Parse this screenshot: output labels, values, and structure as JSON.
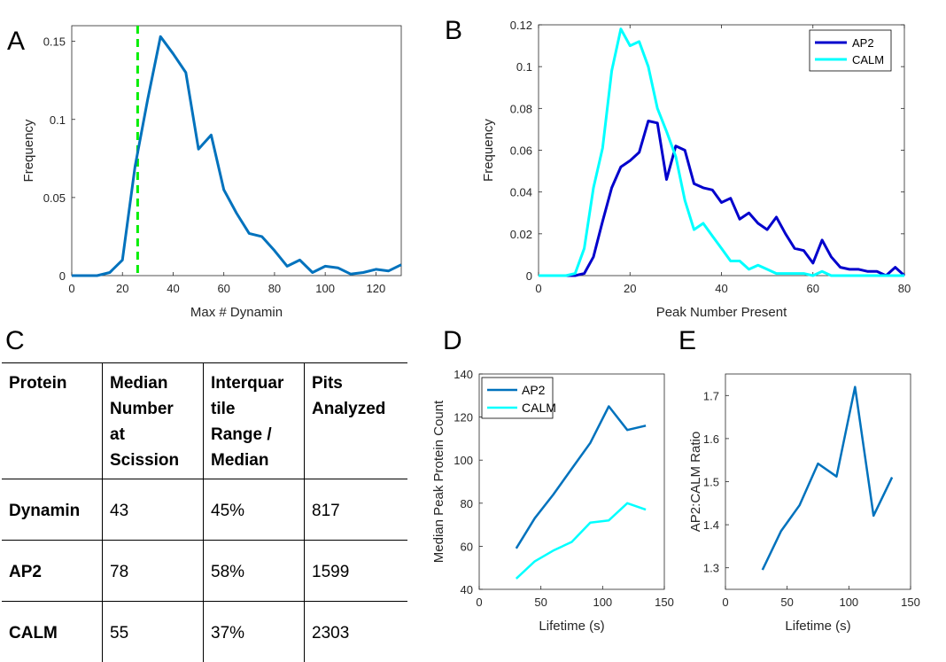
{
  "panel_labels": [
    "A",
    "B",
    "C",
    "D",
    "E"
  ],
  "colors": {
    "blue": "#0072bd",
    "dark_blue": "#0000cc",
    "cyan": "#00ffff",
    "green": "#00ee00"
  },
  "chart_data": [
    {
      "panel": "A",
      "type": "line",
      "xlabel": "Max # Dynamin",
      "ylabel": "Frequency",
      "xlim": [
        0,
        130
      ],
      "ylim": [
        0,
        0.16
      ],
      "xticks": [
        0,
        20,
        40,
        60,
        80,
        100,
        120
      ],
      "yticks": [
        0,
        0.05,
        0.1,
        0.15
      ],
      "ytick_labels": [
        "0",
        "0.05",
        "0.1",
        "0.15"
      ],
      "vline": {
        "x": 26,
        "style": "dashed",
        "color": "#00ee00"
      },
      "series": [
        {
          "color": "#0072bd",
          "x": [
            0,
            5,
            10,
            15,
            20,
            25,
            30,
            35,
            40,
            45,
            50,
            55,
            60,
            65,
            70,
            75,
            80,
            85,
            90,
            95,
            100,
            105,
            110,
            115,
            120,
            125,
            130
          ],
          "y": [
            0,
            0,
            0,
            0.002,
            0.01,
            0.07,
            0.113,
            0.153,
            0.142,
            0.13,
            0.081,
            0.09,
            0.055,
            0.04,
            0.027,
            0.025,
            0.016,
            0.006,
            0.01,
            0.002,
            0.006,
            0.005,
            0.001,
            0.002,
            0.004,
            0.003,
            0.007
          ]
        }
      ]
    },
    {
      "panel": "B",
      "type": "line",
      "xlabel": "Peak Number Present",
      "ylabel": "Frequency",
      "xlim": [
        0,
        80
      ],
      "ylim": [
        0,
        0.12
      ],
      "xticks": [
        0,
        20,
        40,
        60,
        80
      ],
      "yticks": [
        0,
        0.02,
        0.04,
        0.06,
        0.08,
        0.1,
        0.12
      ],
      "ytick_labels": [
        "0",
        "0.02",
        "0.04",
        "0.06",
        "0.08",
        "0.1",
        "0.12"
      ],
      "legend": "top-right",
      "series": [
        {
          "name": "AP2",
          "color": "#0000cc",
          "x": [
            0,
            2,
            4,
            6,
            8,
            10,
            12,
            14,
            16,
            18,
            20,
            22,
            24,
            26,
            28,
            30,
            32,
            34,
            36,
            38,
            40,
            42,
            44,
            46,
            48,
            50,
            52,
            54,
            56,
            58,
            60,
            62,
            64,
            66,
            68,
            70,
            72,
            74,
            76,
            78,
            80
          ],
          "y": [
            0,
            0,
            0,
            0,
            0,
            0.001,
            0.009,
            0.026,
            0.042,
            0.052,
            0.055,
            0.059,
            0.074,
            0.073,
            0.046,
            0.062,
            0.06,
            0.044,
            0.042,
            0.041,
            0.035,
            0.037,
            0.027,
            0.03,
            0.025,
            0.022,
            0.028,
            0.02,
            0.013,
            0.012,
            0.006,
            0.017,
            0.009,
            0.004,
            0.003,
            0.003,
            0.002,
            0.002,
            0,
            0.004,
            0
          ]
        },
        {
          "name": "CALM",
          "color": "#00ffff",
          "x": [
            0,
            2,
            4,
            6,
            8,
            10,
            12,
            14,
            16,
            18,
            20,
            22,
            24,
            26,
            28,
            30,
            32,
            34,
            36,
            38,
            40,
            42,
            44,
            46,
            48,
            50,
            52,
            54,
            56,
            58,
            60,
            62,
            64,
            66,
            68,
            70,
            72,
            74,
            76,
            78,
            80
          ],
          "y": [
            0,
            0,
            0,
            0,
            0.001,
            0.013,
            0.042,
            0.061,
            0.098,
            0.118,
            0.11,
            0.112,
            0.1,
            0.08,
            0.069,
            0.057,
            0.036,
            0.022,
            0.025,
            0.019,
            0.013,
            0.007,
            0.007,
            0.003,
            0.005,
            0.003,
            0.001,
            0.001,
            0.001,
            0.001,
            0,
            0.002,
            0,
            0,
            0,
            0,
            0,
            0,
            0,
            0,
            0
          ]
        }
      ]
    },
    {
      "panel": "D",
      "type": "line",
      "xlabel": "Lifetime (s)",
      "ylabel": "Median Peak Protein Count",
      "xlim": [
        0,
        150
      ],
      "ylim": [
        40,
        140
      ],
      "xticks": [
        0,
        50,
        100,
        150
      ],
      "yticks": [
        40,
        60,
        80,
        100,
        120,
        140
      ],
      "legend": "top-left",
      "series": [
        {
          "name": "AP2",
          "color": "#0072bd",
          "x": [
            30,
            45,
            60,
            75,
            90,
            105,
            120,
            135
          ],
          "y": [
            59,
            73,
            84,
            96,
            108,
            125,
            114,
            116
          ]
        },
        {
          "name": "CALM",
          "color": "#00ffff",
          "x": [
            30,
            45,
            60,
            75,
            90,
            105,
            120,
            135
          ],
          "y": [
            45,
            53,
            58,
            62,
            71,
            72,
            80,
            77
          ]
        }
      ]
    },
    {
      "panel": "E",
      "type": "line",
      "xlabel": "Lifetime (s)",
      "ylabel": "AP2:CALM Ratio",
      "xlim": [
        0,
        150
      ],
      "ylim": [
        1.25,
        1.75
      ],
      "xticks": [
        0,
        50,
        100,
        150
      ],
      "yticks": [
        1.3,
        1.4,
        1.5,
        1.6,
        1.7
      ],
      "series": [
        {
          "color": "#0072bd",
          "x": [
            30,
            45,
            60,
            75,
            90,
            105,
            120,
            135
          ],
          "y": [
            1.295,
            1.385,
            1.445,
            1.542,
            1.512,
            1.72,
            1.421,
            1.51
          ]
        }
      ]
    },
    {
      "panel": "C",
      "type": "table",
      "headers": [
        "Protein",
        "Median Number at Scission",
        "Interquartile Range / Median",
        "Pits Analyzed"
      ],
      "header_lines": [
        [
          "Protein"
        ],
        [
          "Median",
          "Number",
          "at",
          "Scission"
        ],
        [
          "Interquar",
          "tile",
          "Range /",
          "Median"
        ],
        [
          "Pits",
          "Analyzed"
        ]
      ],
      "rows": [
        [
          "Dynamin",
          "43",
          "45%",
          "817"
        ],
        [
          "AP2",
          "78",
          "58%",
          "1599"
        ],
        [
          "CALM",
          "55",
          "37%",
          "2303"
        ]
      ]
    }
  ]
}
